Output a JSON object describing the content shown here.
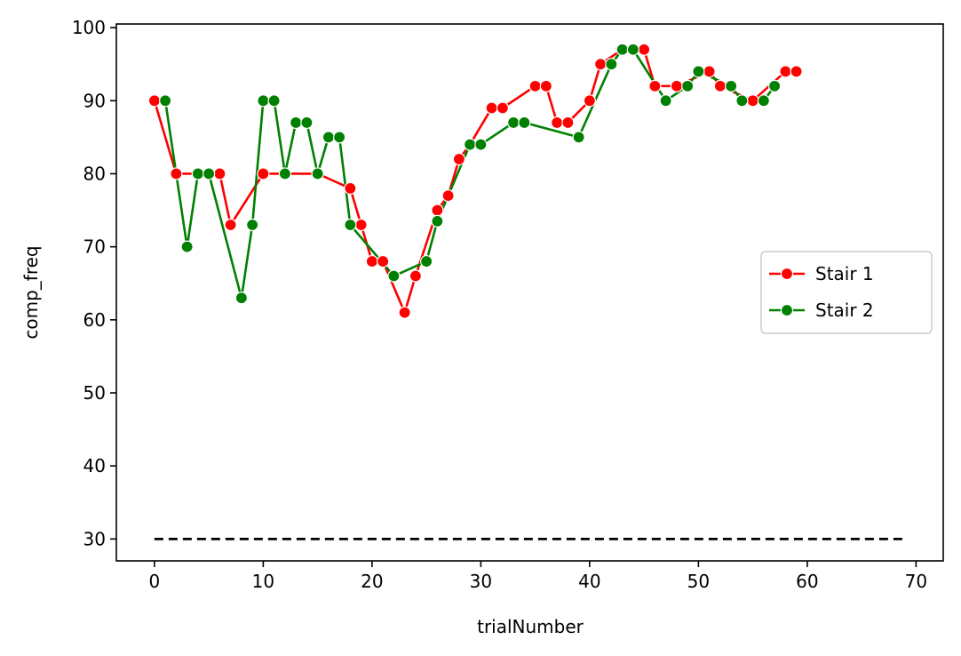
{
  "chart_data": {
    "type": "line",
    "xlabel": "trialNumber",
    "ylabel": "comp_freq",
    "xlim": [
      -3.5,
      72.5
    ],
    "ylim": [
      27,
      100.5
    ],
    "xticks": [
      0,
      10,
      20,
      30,
      40,
      50,
      60,
      70
    ],
    "yticks": [
      30,
      40,
      50,
      60,
      70,
      80,
      90,
      100
    ],
    "grid": false,
    "legend_position": "center-right",
    "series": [
      {
        "name": "Stair 1",
        "color": "#ff0000",
        "marker": "circle",
        "points": [
          [
            0,
            90
          ],
          [
            2,
            80
          ],
          [
            4,
            80
          ],
          [
            6,
            80
          ],
          [
            7,
            73
          ],
          [
            10,
            80
          ],
          [
            15,
            80
          ],
          [
            18,
            78
          ],
          [
            19,
            73
          ],
          [
            20,
            68
          ],
          [
            21,
            68
          ],
          [
            23,
            61
          ],
          [
            24,
            66
          ],
          [
            26,
            75
          ],
          [
            27,
            77
          ],
          [
            28,
            82
          ],
          [
            29,
            84
          ],
          [
            31,
            89
          ],
          [
            32,
            89
          ],
          [
            35,
            92
          ],
          [
            36,
            92
          ],
          [
            37,
            87
          ],
          [
            38,
            87
          ],
          [
            40,
            90
          ],
          [
            41,
            95
          ],
          [
            43,
            97
          ],
          [
            45,
            97
          ],
          [
            46,
            92
          ],
          [
            48,
            92
          ],
          [
            51,
            94
          ],
          [
            52,
            92
          ],
          [
            55,
            90
          ],
          [
            58,
            94
          ],
          [
            59,
            94
          ]
        ]
      },
      {
        "name": "Stair 2",
        "color": "#008000",
        "marker": "circle",
        "points": [
          [
            1,
            90
          ],
          [
            3,
            70
          ],
          [
            4,
            80
          ],
          [
            5,
            80
          ],
          [
            8,
            63
          ],
          [
            9,
            73
          ],
          [
            10,
            90
          ],
          [
            11,
            90
          ],
          [
            12,
            80
          ],
          [
            13,
            87
          ],
          [
            14,
            87
          ],
          [
            15,
            80
          ],
          [
            16,
            85
          ],
          [
            17,
            85
          ],
          [
            18,
            73
          ],
          [
            22,
            66
          ],
          [
            25,
            68
          ],
          [
            26,
            73.5
          ],
          [
            29,
            84
          ],
          [
            30,
            84
          ],
          [
            33,
            87
          ],
          [
            34,
            87
          ],
          [
            39,
            85
          ],
          [
            42,
            95
          ],
          [
            43,
            97
          ],
          [
            44,
            97
          ],
          [
            47,
            90
          ],
          [
            49,
            92
          ],
          [
            50,
            94
          ],
          [
            53,
            92
          ],
          [
            54,
            90
          ],
          [
            56,
            90
          ],
          [
            57,
            92
          ]
        ]
      }
    ],
    "reference_line": {
      "y": 30,
      "x_range": [
        0,
        69
      ],
      "style": "dashed",
      "color": "#000000"
    }
  }
}
